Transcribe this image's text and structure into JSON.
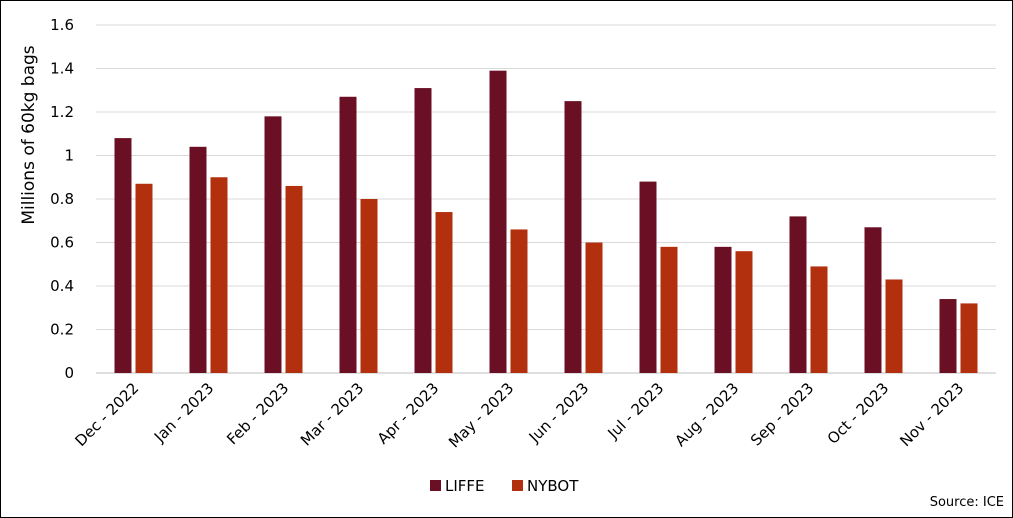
{
  "chart_data": {
    "type": "bar",
    "title": "",
    "ylabel": "Millions of 60kg bags",
    "xlabel": "",
    "ylim": [
      0,
      1.6
    ],
    "yticks": [
      0,
      0.2,
      0.4,
      0.6,
      0.8,
      1,
      1.2,
      1.4,
      1.6
    ],
    "ytick_labels": [
      "0",
      "0.2",
      "0.4",
      "0.6",
      "0.8",
      "1",
      "1.2",
      "1.4",
      "1.6"
    ],
    "grid": true,
    "legend_position": "bottom",
    "categories": [
      "Dec - 2022",
      "Jan - 2023",
      "Feb - 2023",
      "Mar - 2023",
      "Apr - 2023",
      "May - 2023",
      "Jun - 2023",
      "Jul - 2023",
      "Aug - 2023",
      "Sep - 2023",
      "Oct - 2023",
      "Nov - 2023"
    ],
    "series": [
      {
        "name": "LIFFE",
        "color": "#6b0f24",
        "values": [
          1.08,
          1.04,
          1.18,
          1.27,
          1.31,
          1.39,
          1.25,
          0.88,
          0.58,
          0.72,
          0.67,
          0.34
        ]
      },
      {
        "name": "NYBOT",
        "color": "#b3300e",
        "values": [
          0.87,
          0.9,
          0.86,
          0.8,
          0.74,
          0.66,
          0.6,
          0.58,
          0.56,
          0.49,
          0.43,
          0.32
        ]
      }
    ],
    "source": "Source: ICE"
  }
}
